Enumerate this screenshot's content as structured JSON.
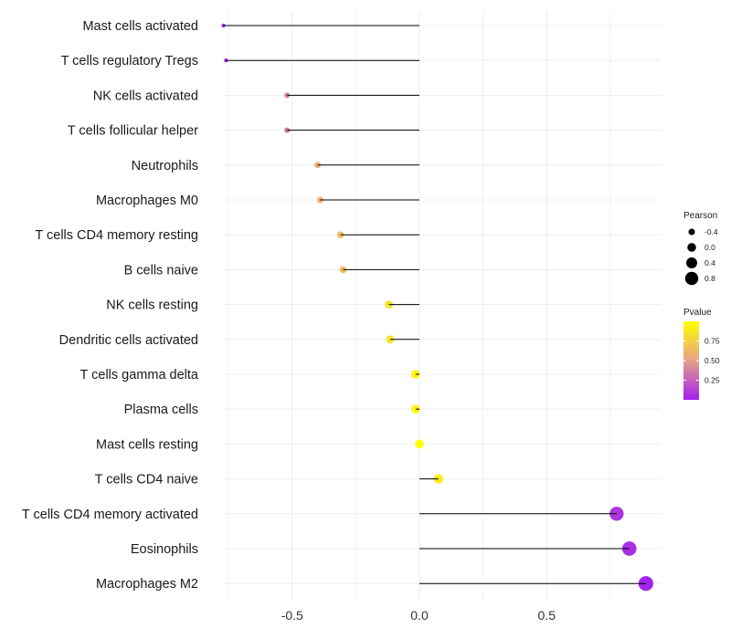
{
  "chart_data": {
    "type": "lollipop",
    "title": "",
    "xlabel": "",
    "ylabel": "",
    "xlim": [
      -0.77,
      0.95
    ],
    "x_ticks": [
      -0.5,
      0.0,
      0.5
    ],
    "x_tick_labels": [
      "-0.5",
      "0.0",
      "0.5"
    ],
    "grid": true,
    "baseline": 0,
    "categories": [
      "Mast cells activated",
      "T cells regulatory  Tregs",
      "NK cells activated",
      "T cells follicular helper",
      "Neutrophils",
      "Macrophages M0",
      "T cells CD4 memory resting",
      "B cells naive",
      "NK cells resting",
      "Dendritic cells activated",
      "T cells gamma delta",
      "Plasma cells",
      "Mast cells resting",
      "T cells CD4 naive",
      "T cells CD4 memory activated",
      "Eosinophils",
      "Macrophages M2"
    ],
    "pearson": [
      -0.77,
      -0.76,
      -0.52,
      -0.52,
      -0.4,
      -0.39,
      -0.31,
      -0.3,
      -0.12,
      -0.115,
      -0.015,
      -0.015,
      0.0,
      0.075,
      0.775,
      0.825,
      0.89
    ],
    "pvalue": [
      0.02,
      0.03,
      0.35,
      0.35,
      0.58,
      0.58,
      0.65,
      0.66,
      0.85,
      0.86,
      0.95,
      0.95,
      1.0,
      0.9,
      0.08,
      0.05,
      0.02
    ],
    "legend": {
      "size_title": "Pearson",
      "size_values": [
        -0.4,
        0.0,
        0.4,
        0.8
      ],
      "size_labels": [
        "-0.4",
        "0.0",
        "0.4",
        "0.8"
      ],
      "color_title": "Pvalue",
      "color_ticks": [
        0.25,
        0.5,
        0.75
      ],
      "color_tick_labels": [
        "0.25",
        "0.50",
        "0.75"
      ],
      "color_range": [
        0.0,
        1.0
      ],
      "color_low": "#A020F0",
      "color_mid": "#E8A08A",
      "color_high": "#FFFF00",
      "placement": "right"
    },
    "line_color": "#000000",
    "grid_color": "#ebebeb"
  }
}
